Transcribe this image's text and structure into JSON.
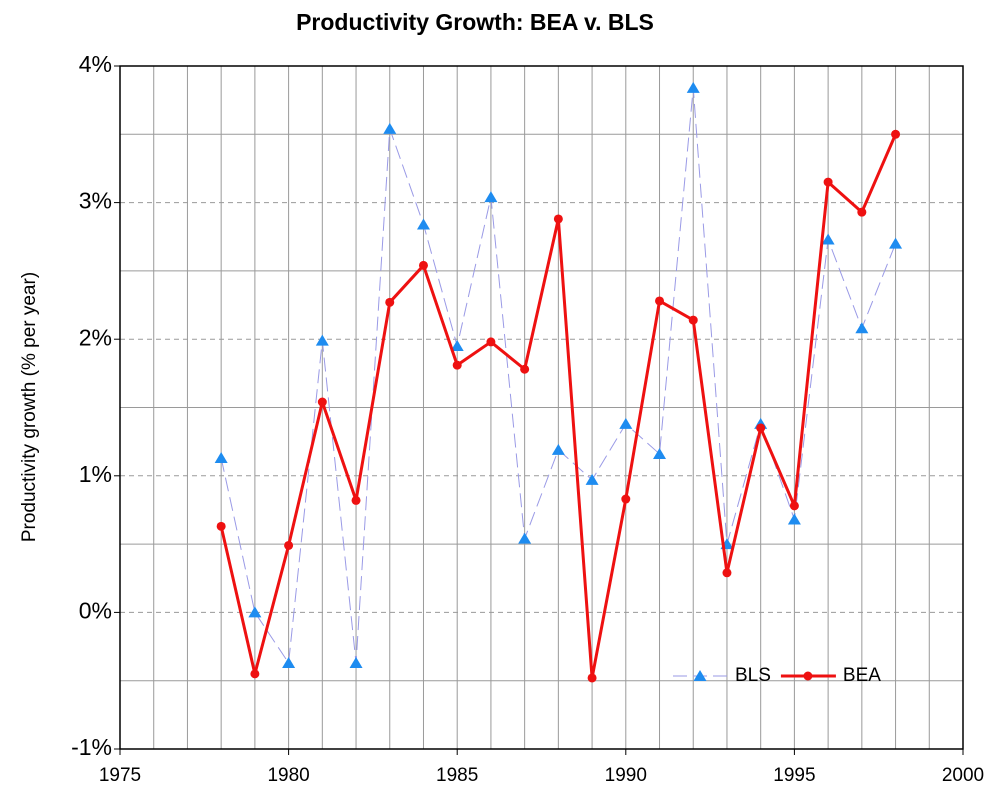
{
  "chart_data": {
    "type": "line",
    "title": "Productivity Growth: BEA v. BLS",
    "ylabel": "Productivity growth (% per year)",
    "x": [
      1978,
      1979,
      1980,
      1981,
      1982,
      1983,
      1984,
      1985,
      1986,
      1987,
      1988,
      1989,
      1990,
      1991,
      1992,
      1993,
      1994,
      1995,
      1996,
      1997,
      1998
    ],
    "series": [
      {
        "name": "BLS",
        "color": "#9a9ae6",
        "marker_color": "#1e8cf0",
        "marker": "triangle",
        "dash": true,
        "width": 1,
        "values": [
          1.13,
          0.0,
          -0.37,
          1.99,
          -0.37,
          3.54,
          2.84,
          1.95,
          3.04,
          0.54,
          1.19,
          0.97,
          1.38,
          1.16,
          3.84,
          0.5,
          1.38,
          0.68,
          2.73,
          2.08,
          2.7
        ]
      },
      {
        "name": "BEA",
        "color": "#ee1111",
        "marker_color": "#ee1111",
        "marker": "circle",
        "dash": false,
        "width": 3,
        "values": [
          0.63,
          -0.45,
          0.49,
          1.54,
          0.82,
          2.27,
          2.54,
          1.81,
          1.98,
          1.78,
          2.88,
          -0.48,
          0.83,
          2.28,
          2.14,
          0.29,
          1.35,
          0.78,
          3.15,
          2.93,
          3.5
        ]
      }
    ],
    "xlim": [
      1975,
      2000
    ],
    "xticks": [
      1975,
      1980,
      1985,
      1990,
      1995,
      2000
    ],
    "x_minor_ticks": [
      1976,
      1977,
      1978,
      1979,
      1981,
      1982,
      1983,
      1984,
      1986,
      1987,
      1988,
      1989,
      1991,
      1992,
      1993,
      1994,
      1996,
      1997,
      1998,
      1999
    ],
    "ylim": [
      -1,
      4
    ],
    "yticks": [
      {
        "value": -1,
        "label": "-1%"
      },
      {
        "value": 0,
        "label": "0%"
      },
      {
        "value": 1,
        "label": "1%"
      },
      {
        "value": 2,
        "label": "2%"
      },
      {
        "value": 3,
        "label": "3%"
      },
      {
        "value": 4,
        "label": "4%"
      }
    ],
    "y_minor_ticks": [
      -0.5,
      0.5,
      1.5,
      2.5,
      3.5
    ],
    "grid": true,
    "legend": "lower right"
  }
}
